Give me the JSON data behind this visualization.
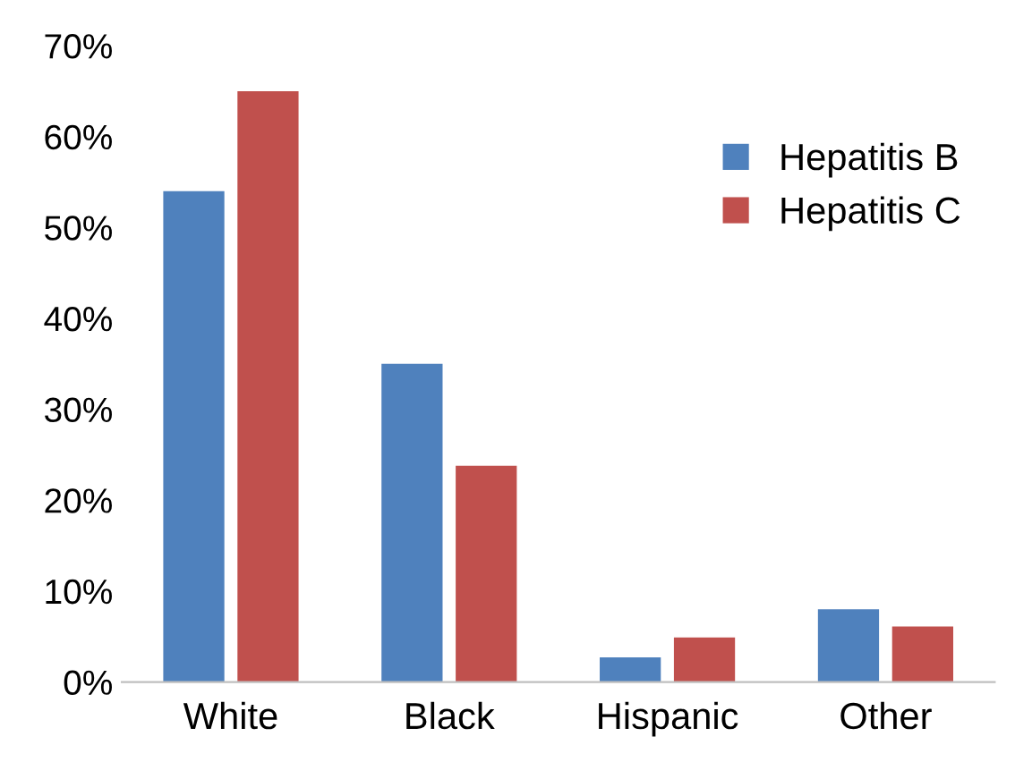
{
  "chart_data": {
    "type": "bar",
    "categories": [
      "White",
      "Black",
      "Hispanic",
      "Other"
    ],
    "series": [
      {
        "name": "Hepatitis B",
        "color": "#4f81bd",
        "values": [
          54,
          35,
          2.7,
          8
        ]
      },
      {
        "name": "Hepatitis C",
        "color": "#c0504d",
        "values": [
          65,
          23.8,
          4.9,
          6.1
        ]
      }
    ],
    "ylim": [
      0,
      70
    ],
    "yticks": [
      {
        "value": 0,
        "label": "0%"
      },
      {
        "value": 10,
        "label": "10%"
      },
      {
        "value": 20,
        "label": "20%"
      },
      {
        "value": 30,
        "label": "30%"
      },
      {
        "value": 40,
        "label": "40%"
      },
      {
        "value": 50,
        "label": "50%"
      },
      {
        "value": 60,
        "label": "60%"
      },
      {
        "value": 70,
        "label": "70%"
      }
    ],
    "grid": false,
    "legend": "top right"
  }
}
